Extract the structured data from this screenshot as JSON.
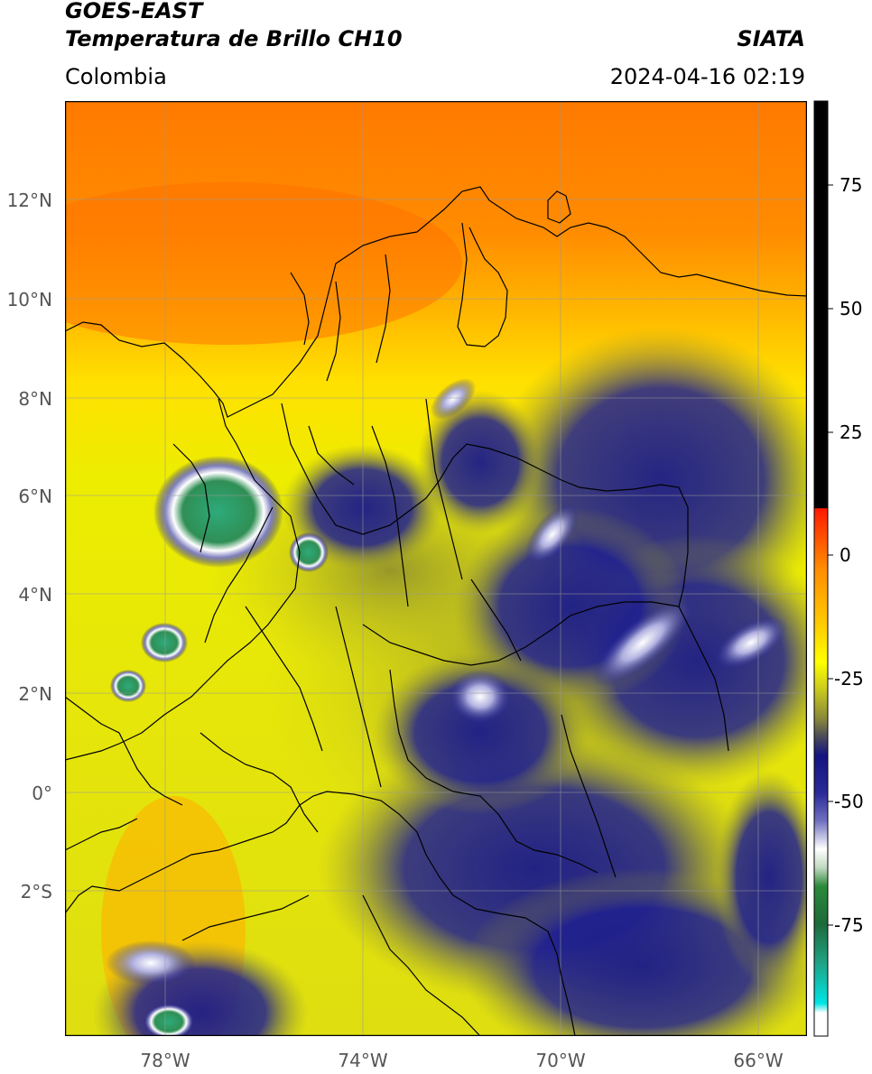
{
  "header": {
    "satellite": "GOES-EAST",
    "product": "Temperatura de Brillo CH10",
    "organization": "SIATA",
    "region": "Colombia",
    "datetime": "2024-04-16 02:19"
  },
  "map": {
    "lat_labels": [
      "12°N",
      "10°N",
      "8°N",
      "6°N",
      "4°N",
      "2°N",
      "0°",
      "2°S"
    ],
    "lon_labels": [
      "78°W",
      "74°W",
      "70°W",
      "66°W"
    ]
  },
  "colorbar": {
    "ticks": [
      "75",
      "50",
      "25",
      "0",
      "-25",
      "-50",
      "-75"
    ],
    "colors": {
      "black": "#000000",
      "red": "#ff1a00",
      "orange": "#ff8c00",
      "yellow": "#ffff00",
      "olive": "#9a9a28",
      "navy": "#141480",
      "white": "#ffffff",
      "green": "#2a8a3a",
      "teal": "#20c0a0",
      "cyan": "#00e5e5"
    }
  }
}
